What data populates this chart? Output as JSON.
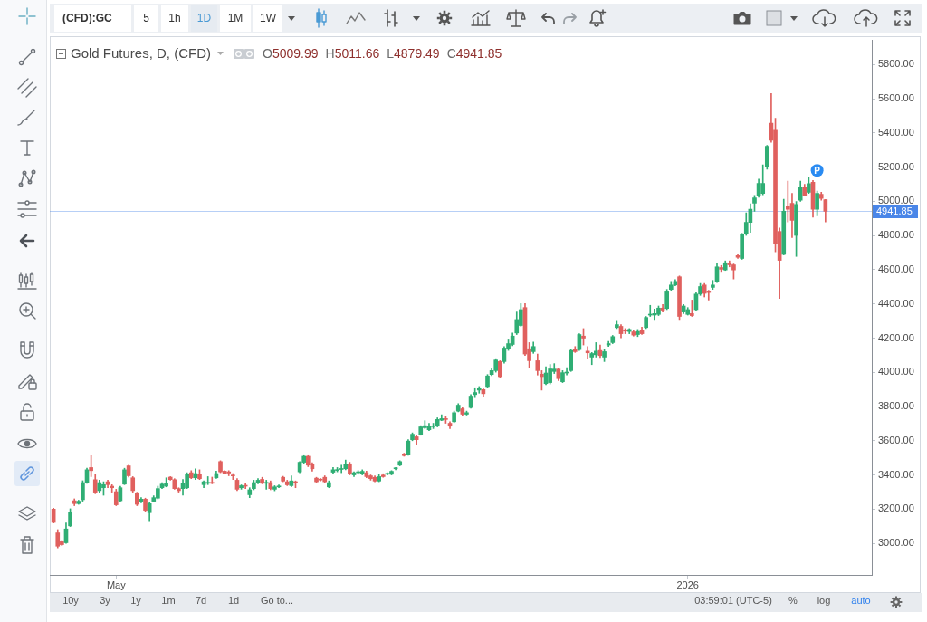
{
  "chart_data": {
    "type": "candlestick",
    "title": "Gold Futures, D, (CFD)",
    "subtitle": "O5009.99 H5011.66 L4879.49 C4941.85",
    "categories": [
      null,
      null,
      null,
      null,
      null,
      null,
      null,
      null,
      null,
      null,
      null,
      null,
      null,
      null,
      null,
      "May",
      null,
      null,
      null,
      null,
      null,
      null,
      null,
      null,
      null,
      null,
      null,
      null,
      null,
      null,
      null,
      null,
      null,
      null,
      null,
      null,
      null,
      null,
      null,
      null,
      null,
      null,
      null,
      null,
      null,
      null,
      null,
      null,
      null,
      null,
      null,
      null,
      null,
      null,
      null,
      null,
      null,
      null,
      null,
      null,
      null,
      null,
      null,
      null,
      null,
      null,
      null,
      null,
      null,
      null,
      null,
      null,
      null,
      null,
      null,
      null,
      null,
      null,
      null,
      null,
      null,
      null,
      null,
      null,
      null,
      null,
      null,
      null,
      null,
      null,
      null,
      null,
      null,
      null,
      null,
      null,
      null,
      null,
      null,
      null,
      null,
      null,
      null,
      null,
      null,
      null,
      null,
      null,
      null,
      null,
      null,
      null,
      null,
      null,
      null,
      null,
      null,
      null,
      null,
      null,
      null,
      null,
      null,
      null,
      null,
      null,
      null,
      null,
      null,
      null,
      null,
      null,
      null,
      null,
      null,
      null,
      null,
      null,
      null,
      null,
      null,
      null,
      null,
      null,
      null,
      null,
      null,
      null,
      null,
      null,
      null,
      null,
      "2026",
      null,
      null,
      null,
      null,
      null,
      null,
      null,
      null,
      null,
      null,
      null,
      null,
      null,
      null,
      null,
      null,
      null,
      null,
      null,
      null,
      null,
      null,
      null,
      null,
      null,
      null,
      null,
      null,
      null,
      null,
      null,
      null,
      null
    ],
    "ohlc": [
      [
        3200,
        3205,
        3118,
        3122
      ],
      [
        3061,
        3080,
        2973,
        2983
      ],
      [
        3009,
        3017,
        2986,
        2992
      ],
      [
        3003,
        3119,
        2999,
        3084
      ],
      [
        3102,
        3202,
        3098,
        3184
      ],
      [
        3249,
        3260,
        3220,
        3232
      ],
      [
        3232,
        3252,
        3228,
        3246
      ],
      [
        3255,
        3366,
        3246,
        3355
      ],
      [
        3355,
        3439,
        3351,
        3430
      ],
      [
        3443,
        3513,
        3390,
        3425
      ],
      [
        3372,
        3404,
        3290,
        3299
      ],
      [
        3308,
        3369,
        3299,
        3355
      ],
      [
        3325,
        3360,
        3281,
        3343
      ],
      [
        3360,
        3369,
        3325,
        3343
      ],
      [
        3334,
        3343,
        3299,
        3325
      ],
      [
        3302,
        3316,
        3220,
        3225
      ],
      [
        3249,
        3334,
        3246,
        3325
      ],
      [
        3346,
        3439,
        3343,
        3430
      ],
      [
        3453,
        3457,
        3387,
        3395
      ],
      [
        3383,
        3390,
        3299,
        3308
      ],
      [
        3290,
        3299,
        3220,
        3228
      ],
      [
        3246,
        3267,
        3237,
        3258
      ],
      [
        3258,
        3264,
        3184,
        3193
      ],
      [
        3179,
        3237,
        3132,
        3232
      ],
      [
        3246,
        3278,
        3242,
        3267
      ],
      [
        3264,
        3334,
        3260,
        3320
      ],
      [
        3325,
        3355,
        3320,
        3346
      ],
      [
        3334,
        3383,
        3330,
        3351
      ],
      [
        3387,
        3390,
        3369,
        3373
      ],
      [
        3372,
        3378,
        3316,
        3320
      ],
      [
        3320,
        3325,
        3299,
        3308
      ],
      [
        3320,
        3373,
        3281,
        3351
      ],
      [
        3325,
        3413,
        3320,
        3404
      ],
      [
        3413,
        3425,
        3378,
        3383
      ],
      [
        3383,
        3436,
        3373,
        3408
      ],
      [
        3404,
        3430,
        3373,
        3378
      ],
      [
        3343,
        3366,
        3325,
        3360
      ],
      [
        3351,
        3390,
        3343,
        3355
      ],
      [
        3355,
        3387,
        3348,
        3351
      ],
      [
        3383,
        3422,
        3380,
        3408
      ],
      [
        3478,
        3483,
        3413,
        3418
      ],
      [
        3422,
        3425,
        3404,
        3410
      ],
      [
        3418,
        3425,
        3395,
        3411
      ],
      [
        3399,
        3408,
        3373,
        3394
      ],
      [
        3369,
        3378,
        3308,
        3316
      ],
      [
        3325,
        3342,
        3316,
        3337
      ],
      [
        3337,
        3351,
        3320,
        3334
      ],
      [
        3284,
        3325,
        3267,
        3313
      ],
      [
        3320,
        3369,
        3313,
        3355
      ],
      [
        3355,
        3378,
        3348,
        3369
      ],
      [
        3374,
        3386,
        3348,
        3351
      ],
      [
        3351,
        3369,
        3316,
        3355
      ],
      [
        3355,
        3365,
        3313,
        3320
      ],
      [
        3316,
        3337,
        3307,
        3330
      ],
      [
        3330,
        3342,
        3325,
        3334
      ],
      [
        3386,
        3392,
        3360,
        3364
      ],
      [
        3360,
        3369,
        3337,
        3342
      ],
      [
        3337,
        3395,
        3330,
        3365
      ],
      [
        3360,
        3365,
        3325,
        3355
      ],
      [
        3418,
        3478,
        3413,
        3474
      ],
      [
        3474,
        3518,
        3465,
        3509
      ],
      [
        3509,
        3518,
        3448,
        3457
      ],
      [
        3465,
        3471,
        3422,
        3436
      ],
      [
        3381,
        3386,
        3355,
        3360
      ],
      [
        3374,
        3378,
        3365,
        3370
      ],
      [
        3386,
        3395,
        3355,
        3360
      ],
      [
        3330,
        3365,
        3325,
        3355
      ],
      [
        3416,
        3443,
        3408,
        3430
      ],
      [
        3426,
        3443,
        3418,
        3430
      ],
      [
        3432,
        3457,
        3413,
        3436
      ],
      [
        3436,
        3487,
        3430,
        3460
      ],
      [
        3465,
        3474,
        3400,
        3407
      ],
      [
        3400,
        3418,
        3390,
        3413
      ],
      [
        3413,
        3425,
        3404,
        3416
      ],
      [
        3407,
        3430,
        3400,
        3421
      ],
      [
        3413,
        3422,
        3383,
        3390
      ],
      [
        3395,
        3400,
        3369,
        3378
      ],
      [
        3386,
        3395,
        3360,
        3364
      ],
      [
        3364,
        3404,
        3360,
        3390
      ],
      [
        3399,
        3407,
        3386,
        3390
      ],
      [
        3404,
        3413,
        3400,
        3408
      ],
      [
        3404,
        3425,
        3400,
        3421
      ],
      [
        3436,
        3443,
        3430,
        3440
      ],
      [
        3457,
        3483,
        3453,
        3478
      ],
      [
        3523,
        3527,
        3509,
        3513
      ],
      [
        3520,
        3606,
        3515,
        3598
      ],
      [
        3606,
        3646,
        3600,
        3638
      ],
      [
        3623,
        3632,
        3579,
        3606
      ],
      [
        3636,
        3688,
        3632,
        3681
      ],
      [
        3676,
        3717,
        3671,
        3688
      ],
      [
        3664,
        3702,
        3659,
        3685
      ],
      [
        3682,
        3702,
        3671,
        3685
      ],
      [
        3685,
        3734,
        3681,
        3724
      ],
      [
        3720,
        3752,
        3717,
        3729
      ],
      [
        3729,
        3741,
        3702,
        3724
      ],
      [
        3702,
        3711,
        3671,
        3685
      ],
      [
        3711,
        3773,
        3706,
        3764
      ],
      [
        3773,
        3817,
        3769,
        3808
      ],
      [
        3787,
        3794,
        3746,
        3755
      ],
      [
        3755,
        3773,
        3750,
        3764
      ],
      [
        3794,
        3870,
        3790,
        3861
      ],
      [
        3870,
        3910,
        3852,
        3882
      ],
      [
        3896,
        3917,
        3878,
        3905
      ],
      [
        3899,
        3910,
        3857,
        3875
      ],
      [
        3917,
        3987,
        3913,
        3979
      ],
      [
        3987,
        4022,
        3980,
        4010
      ],
      [
        4010,
        4080,
        4001,
        4072
      ],
      [
        4063,
        4068,
        3966,
        3975
      ],
      [
        4063,
        4151,
        4054,
        4142
      ],
      [
        4138,
        4195,
        4128,
        4168
      ],
      [
        4163,
        4230,
        4156,
        4212
      ],
      [
        4230,
        4353,
        4221,
        4309
      ],
      [
        4274,
        4402,
        4269,
        4367
      ],
      [
        4379,
        4402,
        4098,
        4107
      ],
      [
        4138,
        4174,
        4028,
        4068
      ],
      [
        4121,
        4177,
        4111,
        4151
      ],
      [
        4068,
        4107,
        3984,
        4010
      ],
      [
        3989,
        4010,
        3896,
        3975
      ],
      [
        3934,
        4033,
        3928,
        3996
      ],
      [
        3940,
        4046,
        3932,
        4020
      ],
      [
        4005,
        4051,
        3993,
        4019
      ],
      [
        4019,
        4026,
        3952,
        3963
      ],
      [
        3945,
        4010,
        3940,
        3998
      ],
      [
        3996,
        4028,
        3984,
        4001
      ],
      [
        4010,
        4133,
        4005,
        4128
      ],
      [
        4133,
        4151,
        4116,
        4121
      ],
      [
        4133,
        4226,
        4128,
        4221
      ],
      [
        4212,
        4256,
        4160,
        4200
      ],
      [
        4124,
        4151,
        4081,
        4114
      ],
      [
        4089,
        4116,
        4045,
        4110
      ],
      [
        4103,
        4174,
        4089,
        4124
      ],
      [
        4128,
        4160,
        4086,
        4098
      ],
      [
        4089,
        4133,
        4063,
        4121
      ],
      [
        4160,
        4181,
        4151,
        4168
      ],
      [
        4174,
        4216,
        4168,
        4209
      ],
      [
        4262,
        4304,
        4256,
        4279
      ],
      [
        4269,
        4279,
        4202,
        4226
      ],
      [
        4244,
        4256,
        4226,
        4241
      ],
      [
        4239,
        4256,
        4226,
        4251
      ],
      [
        4237,
        4248,
        4212,
        4218
      ],
      [
        4221,
        4251,
        4209,
        4239
      ],
      [
        4244,
        4265,
        4221,
        4226
      ],
      [
        4262,
        4327,
        4256,
        4321
      ],
      [
        4335,
        4392,
        4327,
        4339
      ],
      [
        4335,
        4370,
        4309,
        4344
      ],
      [
        4339,
        4388,
        4332,
        4376
      ],
      [
        4376,
        4397,
        4353,
        4364
      ],
      [
        4374,
        4485,
        4367,
        4476
      ],
      [
        4485,
        4532,
        4480,
        4511
      ],
      [
        4511,
        4543,
        4506,
        4532
      ],
      [
        4559,
        4564,
        4309,
        4327
      ],
      [
        4353,
        4397,
        4344,
        4388
      ],
      [
        4339,
        4379,
        4335,
        4367
      ],
      [
        4344,
        4423,
        4327,
        4332
      ],
      [
        4367,
        4467,
        4362,
        4458
      ],
      [
        4458,
        4520,
        4450,
        4502
      ],
      [
        4511,
        4520,
        4441,
        4462
      ],
      [
        4476,
        4480,
        4423,
        4467
      ],
      [
        4497,
        4538,
        4485,
        4511
      ],
      [
        4532,
        4638,
        4525,
        4617
      ],
      [
        4613,
        4625,
        4590,
        4603
      ],
      [
        4599,
        4652,
        4596,
        4641
      ],
      [
        4639,
        4652,
        4617,
        4629
      ],
      [
        4629,
        4634,
        4546,
        4599
      ],
      [
        4683,
        4690,
        4666,
        4673
      ],
      [
        4666,
        4813,
        4661,
        4810
      ],
      [
        4810,
        4933,
        4801,
        4877
      ],
      [
        4877,
        4986,
        4819,
        4954
      ],
      [
        4989,
        5035,
        4942,
        5021
      ],
      [
        5035,
        5130,
        5024,
        5105
      ],
      [
        5047,
        5214,
        5038,
        5105
      ],
      [
        5200,
        5328,
        5188,
        5323
      ],
      [
        5457,
        5631,
        5346,
        5358
      ],
      [
        5417,
        5487,
        4705,
        4754
      ],
      [
        4824,
        4845,
        4432,
        4655
      ],
      [
        4690,
        5012,
        4687,
        4942
      ],
      [
        4972,
        5118,
        4880,
        4954
      ],
      [
        4989,
        5047,
        4789,
        4889
      ],
      [
        4801,
        5000,
        4678,
        4982
      ],
      [
        5007,
        5118,
        5000,
        5082
      ],
      [
        5086,
        5100,
        5030,
        5035
      ],
      [
        5053,
        5144,
        5047,
        5104
      ],
      [
        5112,
        5123,
        4907,
        4954
      ],
      [
        4954,
        5060,
        4916,
        5047
      ],
      [
        5042,
        5053,
        5007,
        5017
      ],
      [
        5009.99,
        5011.66,
        4879.49,
        4941.85
      ]
    ],
    "colors": [
      "#e0605e",
      "#e0605e",
      "#e0605e",
      "#2fae74",
      "#2fae74",
      "#e0605e",
      "#2fae74",
      "#2fae74",
      "#2fae74",
      "#e0605e",
      "#e0605e",
      "#2fae74",
      "#2fae74",
      "#e0605e",
      "#e0605e",
      "#e0605e",
      "#2fae74",
      "#2fae74",
      "#e0605e",
      "#e0605e",
      "#e0605e",
      "#2fae74",
      "#e0605e",
      "#2fae74",
      "#2fae74",
      "#2fae74",
      "#2fae74",
      "#2fae74",
      "#e0605e",
      "#e0605e",
      "#e0605e",
      "#2fae74",
      "#2fae74",
      "#e0605e",
      "#2fae74",
      "#e0605e",
      "#2fae74",
      "#2fae74",
      "#e0605e",
      "#2fae74",
      "#e0605e",
      "#e0605e",
      "#e0605e",
      "#e0605e",
      "#e0605e",
      "#2fae74",
      "#e0605e",
      "#2fae74",
      "#2fae74",
      "#2fae74",
      "#e0605e",
      "#2fae74",
      "#e0605e",
      "#2fae74",
      "#2fae74",
      "#e0605e",
      "#e0605e",
      "#2fae74",
      "#e0605e",
      "#2fae74",
      "#2fae74",
      "#e0605e",
      "#e0605e",
      "#e0605e",
      "#e0605e",
      "#e0605e",
      "#2fae74",
      "#2fae74",
      "#2fae74",
      "#2fae74",
      "#2fae74",
      "#e0605e",
      "#2fae74",
      "#2fae74",
      "#2fae74",
      "#e0605e",
      "#e0605e",
      "#e0605e",
      "#2fae74",
      "#e0605e",
      "#2fae74",
      "#2fae74",
      "#2fae74",
      "#2fae74",
      "#e0605e",
      "#2fae74",
      "#2fae74",
      "#e0605e",
      "#2fae74",
      "#2fae74",
      "#2fae74",
      "#2fae74",
      "#2fae74",
      "#2fae74",
      "#e0605e",
      "#e0605e",
      "#2fae74",
      "#2fae74",
      "#e0605e",
      "#2fae74",
      "#2fae74",
      "#2fae74",
      "#2fae74",
      "#e0605e",
      "#2fae74",
      "#2fae74",
      "#2fae74",
      "#e0605e",
      "#2fae74",
      "#2fae74",
      "#2fae74",
      "#2fae74",
      "#2fae74",
      "#e0605e",
      "#e0605e",
      "#2fae74",
      "#e0605e",
      "#e0605e",
      "#2fae74",
      "#2fae74",
      "#2fae74",
      "#e0605e",
      "#2fae74",
      "#2fae74",
      "#2fae74",
      "#e0605e",
      "#2fae74",
      "#e0605e",
      "#e0605e",
      "#2fae74",
      "#2fae74",
      "#e0605e",
      "#2fae74",
      "#2fae74",
      "#2fae74",
      "#2fae74",
      "#e0605e",
      "#e0605e",
      "#2fae74",
      "#e0605e",
      "#2fae74",
      "#e0605e",
      "#2fae74",
      "#2fae74",
      "#2fae74",
      "#2fae74",
      "#e0605e",
      "#2fae74",
      "#2fae74",
      "#2fae74",
      "#e0605e",
      "#2fae74",
      "#2fae74",
      "#e0605e",
      "#2fae74",
      "#2fae74",
      "#e0605e",
      "#e0605e",
      "#2fae74",
      "#2fae74",
      "#e0605e",
      "#2fae74",
      "#e0605e",
      "#e0605e",
      "#e0605e",
      "#2fae74",
      "#2fae74",
      "#2fae74",
      "#2fae74",
      "#2fae74",
      "#2fae74",
      "#2fae74",
      "#e0605e",
      "#e0605e",
      "#e0605e",
      "#2fae74",
      "#e0605e",
      "#e0605e",
      "#2fae74",
      "#2fae74",
      "#e0605e",
      "#2fae74",
      "#e0605e",
      "#2fae74",
      "#e0605e",
      "#e0605e"
    ],
    "ylim": [
      2815,
      5942
    ],
    "yticks": [
      {
        "value": 3000,
        "label": "3000.00"
      },
      {
        "value": 3200,
        "label": "3200.00"
      },
      {
        "value": 3400,
        "label": "3400.00"
      },
      {
        "value": 3600,
        "label": "3600.00"
      },
      {
        "value": 3800,
        "label": "3800.00"
      },
      {
        "value": 4000,
        "label": "4000.00"
      },
      {
        "value": 4200,
        "label": "4200.00"
      },
      {
        "value": 4400,
        "label": "4400.00"
      },
      {
        "value": 4600,
        "label": "4600.00"
      },
      {
        "value": 4800,
        "label": "4800.00"
      },
      {
        "value": 5000,
        "label": "5000.00"
      },
      {
        "value": 5200,
        "label": "5200.00"
      },
      {
        "value": 5400,
        "label": "5400.00"
      },
      {
        "value": 5600,
        "label": "5600.00"
      },
      {
        "value": 5800,
        "label": "5800.00"
      }
    ],
    "ref_lines": [
      {
        "axis": "y",
        "value": 4941.85,
        "label": "4941.85",
        "color": "#4a86e8"
      }
    ],
    "annotations": [
      "(CFD):GC",
      "5",
      "1h",
      "1D",
      "1M",
      "1W",
      "P",
      "10y",
      "3y",
      "1y",
      "1m",
      "7d",
      "1d",
      "Go to...",
      "03:59:01 (UTC-5)",
      "%",
      "log",
      "auto"
    ]
  }
}
